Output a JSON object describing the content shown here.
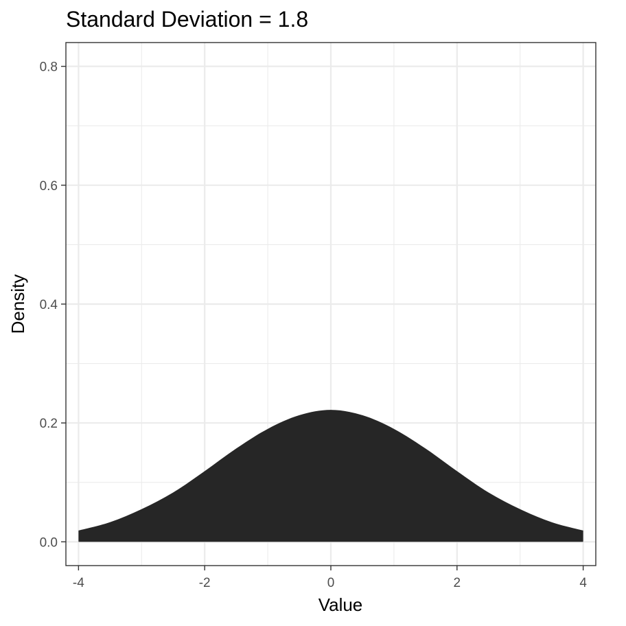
{
  "chart_data": {
    "type": "area",
    "title": "Standard Deviation = 1.8",
    "xlabel": "Value",
    "ylabel": "Density",
    "xlim": [
      -4.2,
      4.2
    ],
    "ylim": [
      -0.04,
      0.84
    ],
    "x_ticks": [
      -4,
      -2,
      0,
      2,
      4
    ],
    "x_tick_labels": [
      "-4",
      "-2",
      "0",
      "2",
      "4"
    ],
    "y_ticks": [
      0.0,
      0.2,
      0.4,
      0.6,
      0.8
    ],
    "y_tick_labels": [
      "0.0",
      "0.2",
      "0.4",
      "0.6",
      "0.8"
    ],
    "grid": true,
    "series": [
      {
        "fill_color": "#262626",
        "x": [
          -4.0,
          -3.5,
          -3.0,
          -2.5,
          -2.0,
          -1.5,
          -1.0,
          -0.5,
          0.0,
          0.5,
          1.0,
          1.5,
          2.0,
          2.5,
          3.0,
          3.5,
          4.0
        ],
        "y": [
          0.019,
          0.033,
          0.055,
          0.083,
          0.119,
          0.157,
          0.19,
          0.213,
          0.222,
          0.213,
          0.19,
          0.157,
          0.119,
          0.083,
          0.055,
          0.033,
          0.019
        ]
      }
    ],
    "colors": {
      "fill": "#262626",
      "grid": "#ebebeb",
      "border": "#333333",
      "tick_text": "#4d4d4d"
    }
  }
}
